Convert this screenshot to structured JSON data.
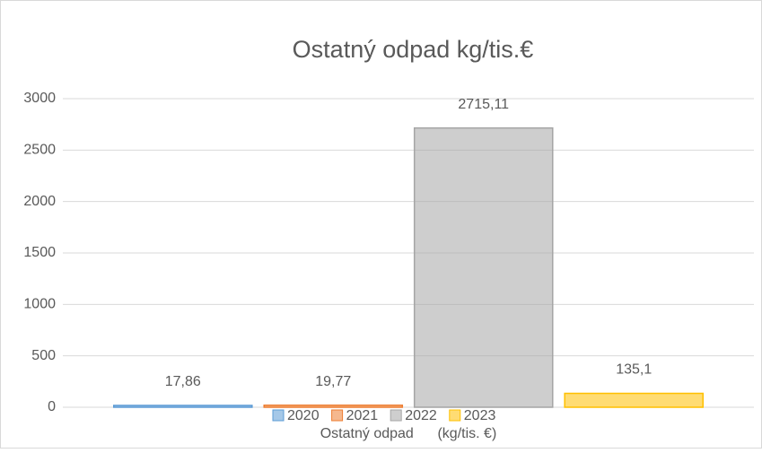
{
  "chart_data": {
    "type": "bar",
    "title": "Ostatný odpad kg/tis.€",
    "categories": [
      "Ostatný odpad      (kg/tis. €)"
    ],
    "series": [
      {
        "name": "2020",
        "color": "#5b9bd5",
        "values": [
          17.86
        ],
        "value_labels": [
          "17,86"
        ]
      },
      {
        "name": "2021",
        "color": "#ed7d31",
        "values": [
          19.77
        ],
        "value_labels": [
          "19,77"
        ]
      },
      {
        "name": "2022",
        "color": "#a5a5a5",
        "values": [
          2715.11
        ],
        "value_labels": [
          "2715,11"
        ]
      },
      {
        "name": "2023",
        "color": "#ffc000",
        "values": [
          135.1
        ],
        "value_labels": [
          "135,1"
        ]
      }
    ],
    "ylim": [
      0,
      3000
    ],
    "yticks": [
      0,
      500,
      1000,
      1500,
      2000,
      2500,
      3000
    ],
    "grid": true,
    "legend": "bottom"
  }
}
